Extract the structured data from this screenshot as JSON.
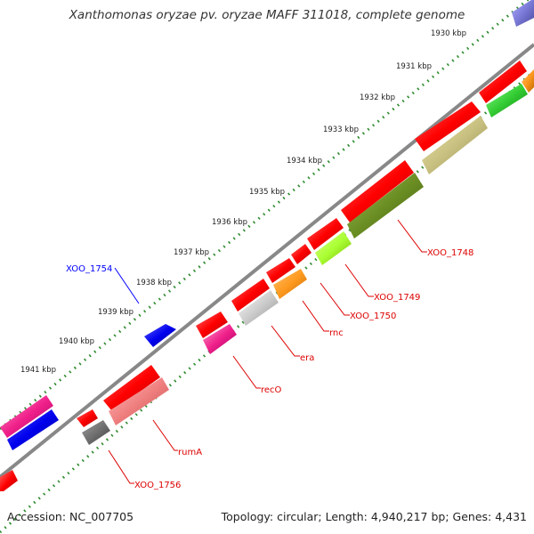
{
  "title": "Xanthomonas oryzae pv. oryzae MAFF 311018, complete genome",
  "accession": "Accession: NC_007705",
  "summary": "Topology: circular; Length: 4,940,217 bp; Genes: 4,431",
  "colors": {
    "backbone": "#888888",
    "ticks": "#2e8b2e",
    "label_forward": "#0000ff",
    "label_reverse": "#dd0000",
    "gene_default": "#ff0000"
  },
  "scale_labels": [
    "1930 kbp",
    "1931 kbp",
    "1932 kbp",
    "1933 kbp",
    "1934 kbp",
    "1935 kbp",
    "1936 kbp",
    "1937 kbp",
    "1938 kbp",
    "1939 kbp",
    "1940 kbp",
    "1941 kbp"
  ],
  "gene_labels": {
    "xoo_1748": "XOO_1748",
    "xoo_1749": "XOO_1749",
    "xoo_1750": "XOO_1750",
    "rnc": "rnc",
    "era": "era",
    "recO": "recO",
    "rumA": "rumA",
    "xoo_1756": "XOO_1756",
    "xoo_1754": "XOO_1754"
  }
}
